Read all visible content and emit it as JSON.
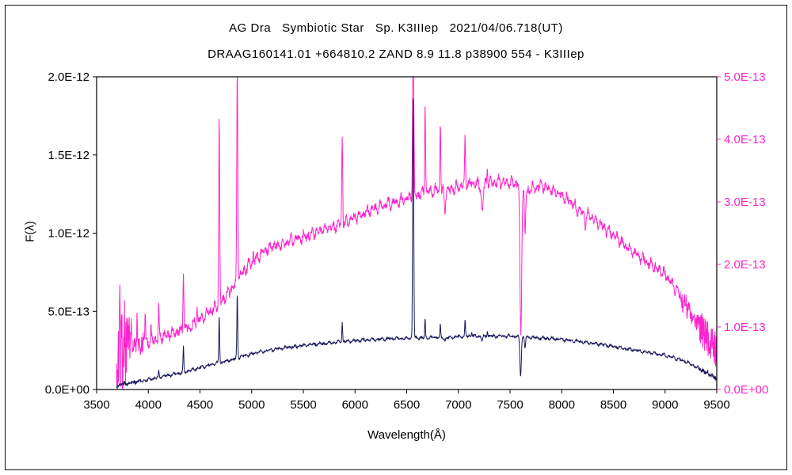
{
  "header": {
    "line1": "AG Dra   Symbiotic Star   Sp. K3IIIep   2021/04/06.718(UT)",
    "line2": "DRAAG160141.01 +664810.2 ZAND 8.9 11.8 p38900 554 - K3IIIep"
  },
  "chart_data": {
    "type": "line",
    "title": "AG Dra   Symbiotic Star   Sp. K3IIIep   2021/04/06.718(UT)",
    "subtitle": "DRAAG160141.01 +664810.2 ZAND 8.9 11.8 p38900 554 - K3IIIep",
    "xlabel": "Wavelength(Å)",
    "ylabel_left": "F(λ)",
    "xlim": [
      3500,
      9500
    ],
    "x_ticks": [
      3500,
      4000,
      4500,
      5000,
      5500,
      6000,
      6500,
      7000,
      7500,
      8000,
      8500,
      9000,
      9500
    ],
    "grid": false,
    "legend": "none",
    "left_axis": {
      "ticks": [
        "0.0E+00",
        "5.0E-13",
        "1.0E-12",
        "1.5E-12",
        "2.0E-12"
      ],
      "values": [
        0,
        0.5,
        1.0,
        1.5,
        2.0
      ],
      "unit": "1e-12",
      "lim": [
        0,
        2.0
      ],
      "color": "#000000"
    },
    "right_axis": {
      "ticks": [
        "0.0E+00",
        "1.0E-13",
        "2.0E-13",
        "3.0E-13",
        "4.0E-13",
        "5.0E-13"
      ],
      "values": [
        0,
        1,
        2,
        3,
        4,
        5
      ],
      "unit": "1e-13",
      "lim": [
        0,
        5.0
      ],
      "color": "#ff22cc"
    },
    "series": [
      {
        "name": "spectrum-right-scale",
        "axis": "right",
        "color": "#ff22cc",
        "x_range": [
          3692,
          9500
        ],
        "step": 3,
        "seed": 9,
        "continuum": [
          [
            3692,
            0.3
          ],
          [
            3700,
            0.55
          ],
          [
            3730,
            0.6
          ],
          [
            3760,
            0.55
          ],
          [
            3800,
            0.63
          ],
          [
            3850,
            0.66
          ],
          [
            3900,
            0.7
          ],
          [
            3950,
            0.73
          ],
          [
            4000,
            0.76
          ],
          [
            4060,
            0.8
          ],
          [
            4120,
            0.84
          ],
          [
            4180,
            0.87
          ],
          [
            4240,
            0.9
          ],
          [
            4300,
            0.93
          ],
          [
            4360,
            0.97
          ],
          [
            4420,
            1.02
          ],
          [
            4480,
            1.1
          ],
          [
            4540,
            1.17
          ],
          [
            4600,
            1.25
          ],
          [
            4660,
            1.32
          ],
          [
            4720,
            1.42
          ],
          [
            4780,
            1.55
          ],
          [
            4840,
            1.68
          ],
          [
            4900,
            1.85
          ],
          [
            4960,
            1.97
          ],
          [
            5020,
            2.06
          ],
          [
            5080,
            2.15
          ],
          [
            5140,
            2.23
          ],
          [
            5200,
            2.3
          ],
          [
            5260,
            2.29
          ],
          [
            5320,
            2.34
          ],
          [
            5380,
            2.38
          ],
          [
            5440,
            2.41
          ],
          [
            5500,
            2.45
          ],
          [
            5560,
            2.46
          ],
          [
            5620,
            2.51
          ],
          [
            5680,
            2.54
          ],
          [
            5740,
            2.57
          ],
          [
            5800,
            2.6
          ],
          [
            5860,
            2.63
          ],
          [
            5920,
            2.68
          ],
          [
            5980,
            2.73
          ],
          [
            6050,
            2.78
          ],
          [
            6120,
            2.84
          ],
          [
            6190,
            2.89
          ],
          [
            6260,
            2.93
          ],
          [
            6330,
            2.97
          ],
          [
            6400,
            3.0
          ],
          [
            6470,
            3.04
          ],
          [
            6540,
            3.07
          ],
          [
            6610,
            3.11
          ],
          [
            6680,
            3.15
          ],
          [
            6750,
            3.18
          ],
          [
            6820,
            3.2
          ],
          [
            6900,
            3.18
          ],
          [
            6960,
            3.23
          ],
          [
            7030,
            3.27
          ],
          [
            7100,
            3.3
          ],
          [
            7200,
            3.28
          ],
          [
            7300,
            3.3
          ],
          [
            7400,
            3.32
          ],
          [
            7500,
            3.3
          ],
          [
            7580,
            3.3
          ],
          [
            7660,
            3.15
          ],
          [
            7720,
            3.22
          ],
          [
            7800,
            3.26
          ],
          [
            7880,
            3.22
          ],
          [
            7960,
            3.14
          ],
          [
            8040,
            3.06
          ],
          [
            8120,
            2.94
          ],
          [
            8200,
            2.82
          ],
          [
            8280,
            2.78
          ],
          [
            8360,
            2.66
          ],
          [
            8440,
            2.54
          ],
          [
            8520,
            2.44
          ],
          [
            8600,
            2.32
          ],
          [
            8680,
            2.22
          ],
          [
            8760,
            2.12
          ],
          [
            8840,
            2.02
          ],
          [
            8920,
            1.94
          ],
          [
            9000,
            1.84
          ],
          [
            9080,
            1.66
          ],
          [
            9160,
            1.46
          ],
          [
            9240,
            1.24
          ],
          [
            9320,
            1.02
          ],
          [
            9400,
            0.84
          ],
          [
            9460,
            0.7
          ],
          [
            9500,
            0.6
          ]
        ],
        "features": [
          [
            3722,
            5,
            1.05
          ],
          [
            3771,
            4,
            0.4
          ],
          [
            3836,
            4,
            0.32
          ],
          [
            3890,
            4,
            0.42
          ],
          [
            3970,
            5,
            0.5
          ],
          [
            4026,
            4,
            0.22
          ],
          [
            4101,
            5,
            0.5
          ],
          [
            4340,
            6,
            0.95
          ],
          [
            4471,
            4,
            0.28
          ],
          [
            4686,
            7,
            2.95
          ],
          [
            4861,
            7,
            3.5
          ],
          [
            5016,
            4,
            0.18
          ],
          [
            5876,
            6,
            1.4
          ],
          [
            6563,
            8,
            2.7
          ],
          [
            6678,
            6,
            1.45
          ],
          [
            6825,
            6,
            1.1
          ],
          [
            7065,
            6,
            0.72
          ],
          [
            7281,
            5,
            0.26
          ],
          [
            6869,
            9,
            -0.38
          ],
          [
            7230,
            13,
            -0.45
          ],
          [
            7604,
            12,
            -2.4
          ],
          [
            7645,
            8,
            -0.7
          ],
          [
            8228,
            9,
            -0.14
          ]
        ],
        "noise": {
          "base": 0.055,
          "regions": [
            [
              3692,
              3830,
              0.65
            ],
            [
              3830,
              3960,
              0.17
            ],
            [
              9150,
              9330,
              0.14
            ],
            [
              9330,
              9500,
              0.3
            ]
          ]
        },
        "ripple": [
          [
            0.05,
            41
          ],
          [
            0.035,
            67
          ]
        ]
      },
      {
        "name": "spectrum-left-scale",
        "axis": "left",
        "color": "#17175c",
        "x_range": [
          3692,
          9500
        ],
        "step": 3,
        "seed": 3,
        "continuum": [
          [
            3692,
            0.015
          ],
          [
            3720,
            0.03
          ],
          [
            3760,
            0.035
          ],
          [
            3800,
            0.04
          ],
          [
            3860,
            0.045
          ],
          [
            3920,
            0.052
          ],
          [
            3980,
            0.06
          ],
          [
            4040,
            0.07
          ],
          [
            4100,
            0.078
          ],
          [
            4160,
            0.086
          ],
          [
            4220,
            0.094
          ],
          [
            4280,
            0.102
          ],
          [
            4340,
            0.11
          ],
          [
            4400,
            0.12
          ],
          [
            4460,
            0.132
          ],
          [
            4520,
            0.144
          ],
          [
            4580,
            0.154
          ],
          [
            4640,
            0.163
          ],
          [
            4700,
            0.172
          ],
          [
            4760,
            0.182
          ],
          [
            4820,
            0.194
          ],
          [
            4880,
            0.206
          ],
          [
            4940,
            0.218
          ],
          [
            5000,
            0.228
          ],
          [
            5060,
            0.236
          ],
          [
            5120,
            0.244
          ],
          [
            5180,
            0.252
          ],
          [
            5240,
            0.258
          ],
          [
            5300,
            0.264
          ],
          [
            5360,
            0.27
          ],
          [
            5420,
            0.275
          ],
          [
            5480,
            0.28
          ],
          [
            5540,
            0.284
          ],
          [
            5600,
            0.288
          ],
          [
            5660,
            0.292
          ],
          [
            5720,
            0.296
          ],
          [
            5780,
            0.3
          ],
          [
            5840,
            0.302
          ],
          [
            5900,
            0.306
          ],
          [
            5960,
            0.31
          ],
          [
            6020,
            0.313
          ],
          [
            6080,
            0.316
          ],
          [
            6140,
            0.318
          ],
          [
            6200,
            0.32
          ],
          [
            6260,
            0.322
          ],
          [
            6320,
            0.324
          ],
          [
            6380,
            0.326
          ],
          [
            6440,
            0.327
          ],
          [
            6500,
            0.328
          ],
          [
            6560,
            0.329
          ],
          [
            6620,
            0.33
          ],
          [
            6680,
            0.331
          ],
          [
            6740,
            0.332
          ],
          [
            6800,
            0.334
          ],
          [
            6880,
            0.33
          ],
          [
            6940,
            0.334
          ],
          [
            7000,
            0.338
          ],
          [
            7060,
            0.341
          ],
          [
            7120,
            0.344
          ],
          [
            7200,
            0.34
          ],
          [
            7280,
            0.342
          ],
          [
            7360,
            0.342
          ],
          [
            7440,
            0.341
          ],
          [
            7520,
            0.34
          ],
          [
            7600,
            0.338
          ],
          [
            7680,
            0.334
          ],
          [
            7760,
            0.331
          ],
          [
            7840,
            0.328
          ],
          [
            7920,
            0.324
          ],
          [
            8000,
            0.32
          ],
          [
            8080,
            0.314
          ],
          [
            8160,
            0.308
          ],
          [
            8240,
            0.301
          ],
          [
            8320,
            0.294
          ],
          [
            8400,
            0.286
          ],
          [
            8480,
            0.277
          ],
          [
            8560,
            0.268
          ],
          [
            8640,
            0.259
          ],
          [
            8720,
            0.25
          ],
          [
            8800,
            0.241
          ],
          [
            8880,
            0.232
          ],
          [
            8960,
            0.223
          ],
          [
            9040,
            0.211
          ],
          [
            9120,
            0.197
          ],
          [
            9200,
            0.178
          ],
          [
            9280,
            0.152
          ],
          [
            9360,
            0.122
          ],
          [
            9440,
            0.092
          ],
          [
            9500,
            0.068
          ]
        ],
        "features": [
          [
            4101,
            4,
            0.035
          ],
          [
            4340,
            5,
            0.16
          ],
          [
            4686,
            6,
            0.3
          ],
          [
            4861,
            6,
            0.41
          ],
          [
            5876,
            5,
            0.13
          ],
          [
            6563,
            7,
            1.53
          ],
          [
            6678,
            5,
            0.12
          ],
          [
            6825,
            5,
            0.08
          ],
          [
            7065,
            5,
            0.1
          ],
          [
            7130,
            4,
            0.03
          ],
          [
            7281,
            4,
            0.04
          ],
          [
            7602,
            10,
            -0.245
          ],
          [
            7645,
            7,
            -0.07
          ],
          [
            7230,
            9,
            -0.028
          ],
          [
            6869,
            8,
            -0.02
          ]
        ],
        "noise": {
          "base": 0.006,
          "regions": [
            [
              3692,
              3900,
              0.012
            ],
            [
              9320,
              9500,
              0.014
            ]
          ]
        },
        "ripple": [
          [
            0.005,
            47
          ],
          [
            0.004,
            83
          ]
        ]
      }
    ]
  }
}
